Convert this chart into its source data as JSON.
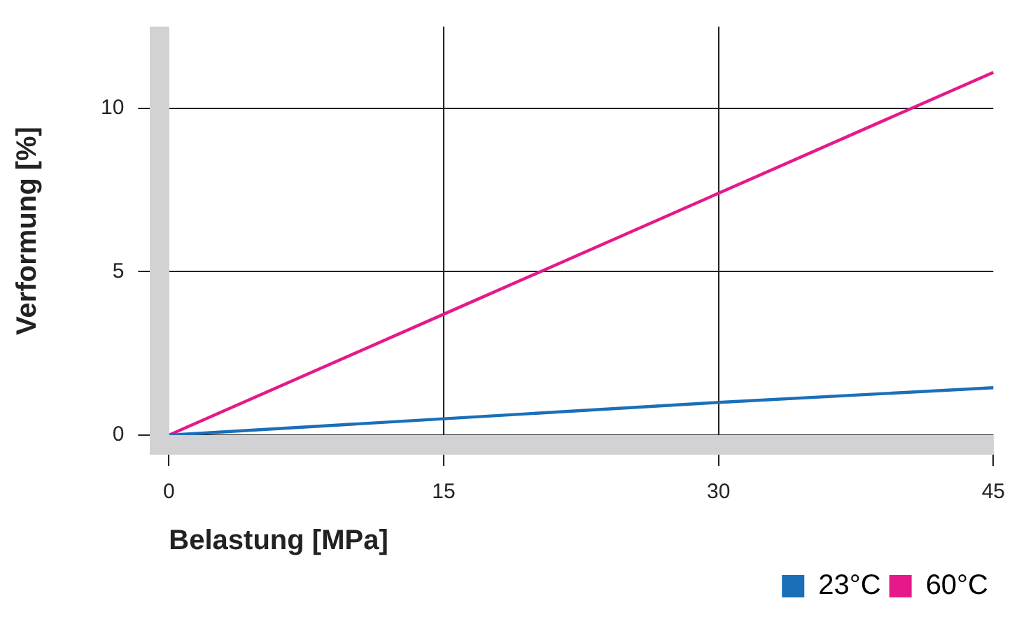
{
  "chart_data": {
    "type": "line",
    "xlabel": "Belastung [MPa]",
    "ylabel": "Verformung [%]",
    "x": [
      0,
      15,
      30,
      45
    ],
    "series": [
      {
        "name": "23°C",
        "color": "#1a6fb8",
        "values": [
          0,
          0.5,
          1.0,
          1.45
        ]
      },
      {
        "name": "60°C",
        "color": "#e5198a",
        "values": [
          0,
          3.7,
          7.4,
          11.1
        ]
      }
    ],
    "xlim": [
      0,
      45
    ],
    "xticks": [
      0,
      15,
      30,
      45
    ],
    "ylim": [
      0,
      12.5
    ],
    "yticks": [
      0,
      5,
      10
    ],
    "grid": true,
    "legend": "bottom right",
    "marker": "none",
    "line_style": "solid"
  }
}
